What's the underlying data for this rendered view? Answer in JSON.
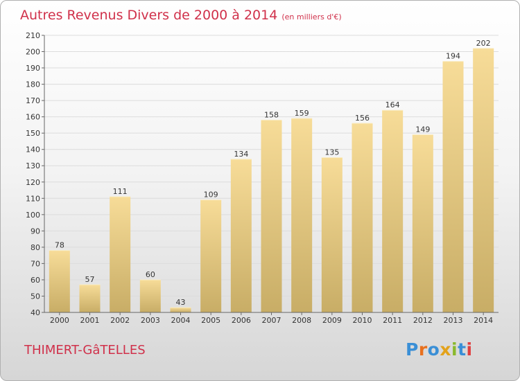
{
  "header": {
    "title": "Autres Revenus Divers de 2000 à 2014",
    "subtitle": "(en milliers d'€)"
  },
  "footer": {
    "commune": "THIMERT-GâTELLES",
    "logo_text": "Proxiti",
    "logo_colors": [
      "#3a8fd6",
      "#e8701e",
      "#3a8fd6",
      "#e3a21a",
      "#8ab92d",
      "#3a8fd6",
      "#e04040"
    ]
  },
  "chart_data": {
    "type": "bar",
    "title": "Autres Revenus Divers de 2000 à 2014",
    "subtitle": "(en milliers d'€)",
    "categories": [
      "2000",
      "2001",
      "2002",
      "2003",
      "2004",
      "2005",
      "2006",
      "2007",
      "2008",
      "2009",
      "2010",
      "2011",
      "2012",
      "2013",
      "2014"
    ],
    "values": [
      78,
      57,
      111,
      60,
      43,
      109,
      134,
      158,
      159,
      135,
      156,
      164,
      149,
      194,
      202
    ],
    "ylim": [
      40,
      210
    ],
    "yticks": [
      40,
      50,
      60,
      70,
      80,
      90,
      100,
      110,
      120,
      130,
      140,
      150,
      160,
      170,
      180,
      190,
      200,
      210
    ],
    "grid": true,
    "legend": "none",
    "colors": {
      "bar_light": "#f7dc98",
      "bar_dark": "#c8ad66",
      "grid": "#dcdcdc",
      "axis": "#666666"
    }
  }
}
